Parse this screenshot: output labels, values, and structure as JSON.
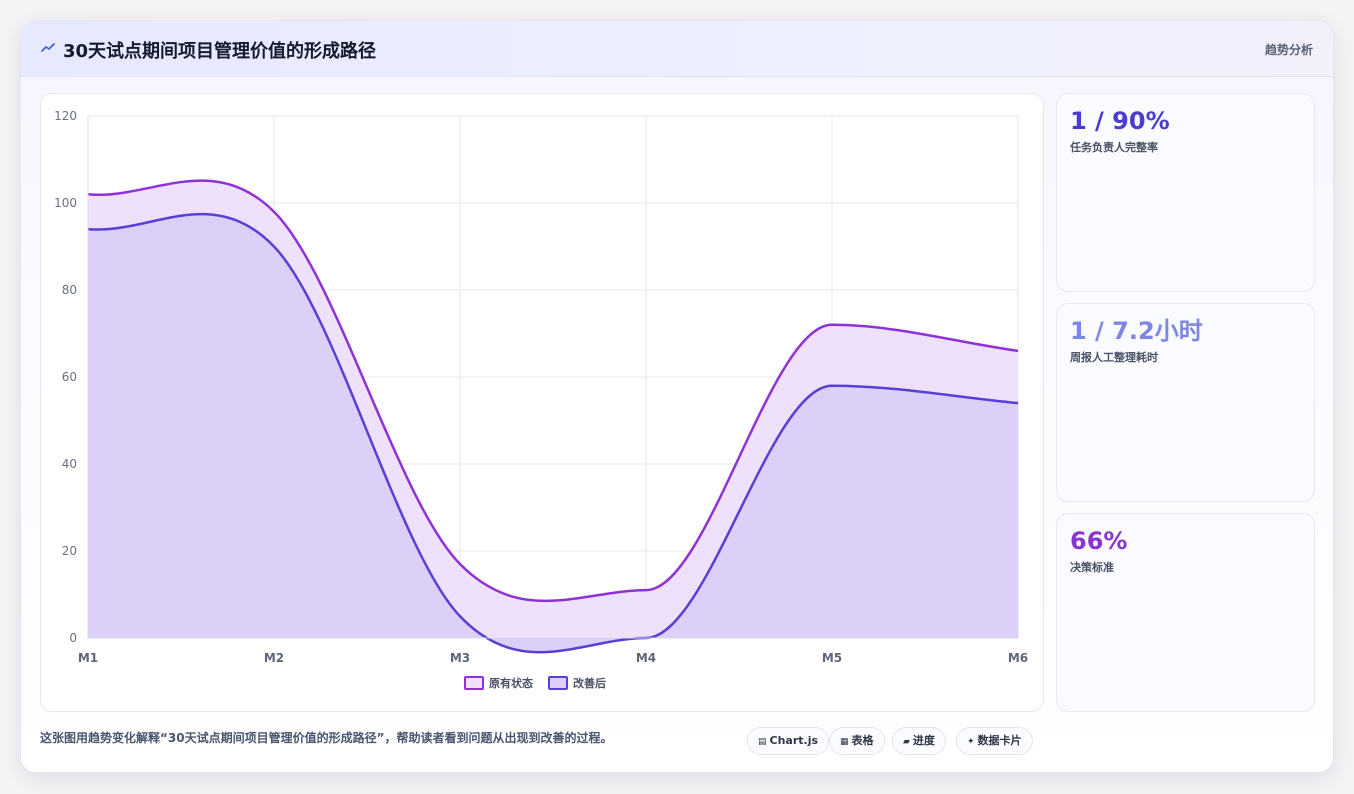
{
  "header": {
    "title": "30天试点期间项目管理价值的形成路径",
    "tag": "趋势分析",
    "icon": "trend-line-icon"
  },
  "kpis": [
    {
      "value": "1 / 90%",
      "label": "任务负责人完整率",
      "color": "#4b3bcf"
    },
    {
      "value": "1 / 7.2小时",
      "label": "周报人工整理耗时",
      "color": "#7d86e0"
    },
    {
      "value": "66%",
      "label": "决策标准",
      "color": "#8b34d6"
    }
  ],
  "footer": {
    "note": "这张图用趋势变化解释“30天试点期间项目管理价值的形成路径”，帮助读者看到问题从出现到改善的过程。",
    "pills": [
      {
        "icon": "chart-icon",
        "glyph": "▤",
        "label": "Chart.js"
      },
      {
        "icon": "table-icon",
        "glyph": "▦",
        "label": "表格"
      },
      {
        "icon": "progress-icon",
        "glyph": "▰",
        "label": "进度"
      },
      {
        "icon": "data-card-icon",
        "glyph": "✦",
        "label": "数据卡片"
      }
    ]
  },
  "chart_data": {
    "type": "area",
    "categories": [
      "M1",
      "M2",
      "M3",
      "M4",
      "M5",
      "M6"
    ],
    "ylim": [
      0,
      120
    ],
    "yticks": [
      "0",
      "20",
      "40",
      "60",
      "80",
      "100",
      "120"
    ],
    "grid": true,
    "legend_position": "bottom",
    "series": [
      {
        "name": "原有状态",
        "values": [
          102,
          98,
          17,
          11,
          72,
          66
        ],
        "color": "#8e32d8",
        "fill": "#efe0fb"
      },
      {
        "name": "改善后",
        "values": [
          94,
          90,
          5,
          0,
          58,
          54
        ],
        "color": "#5a3fd6",
        "fill": "#dccff8"
      }
    ]
  }
}
